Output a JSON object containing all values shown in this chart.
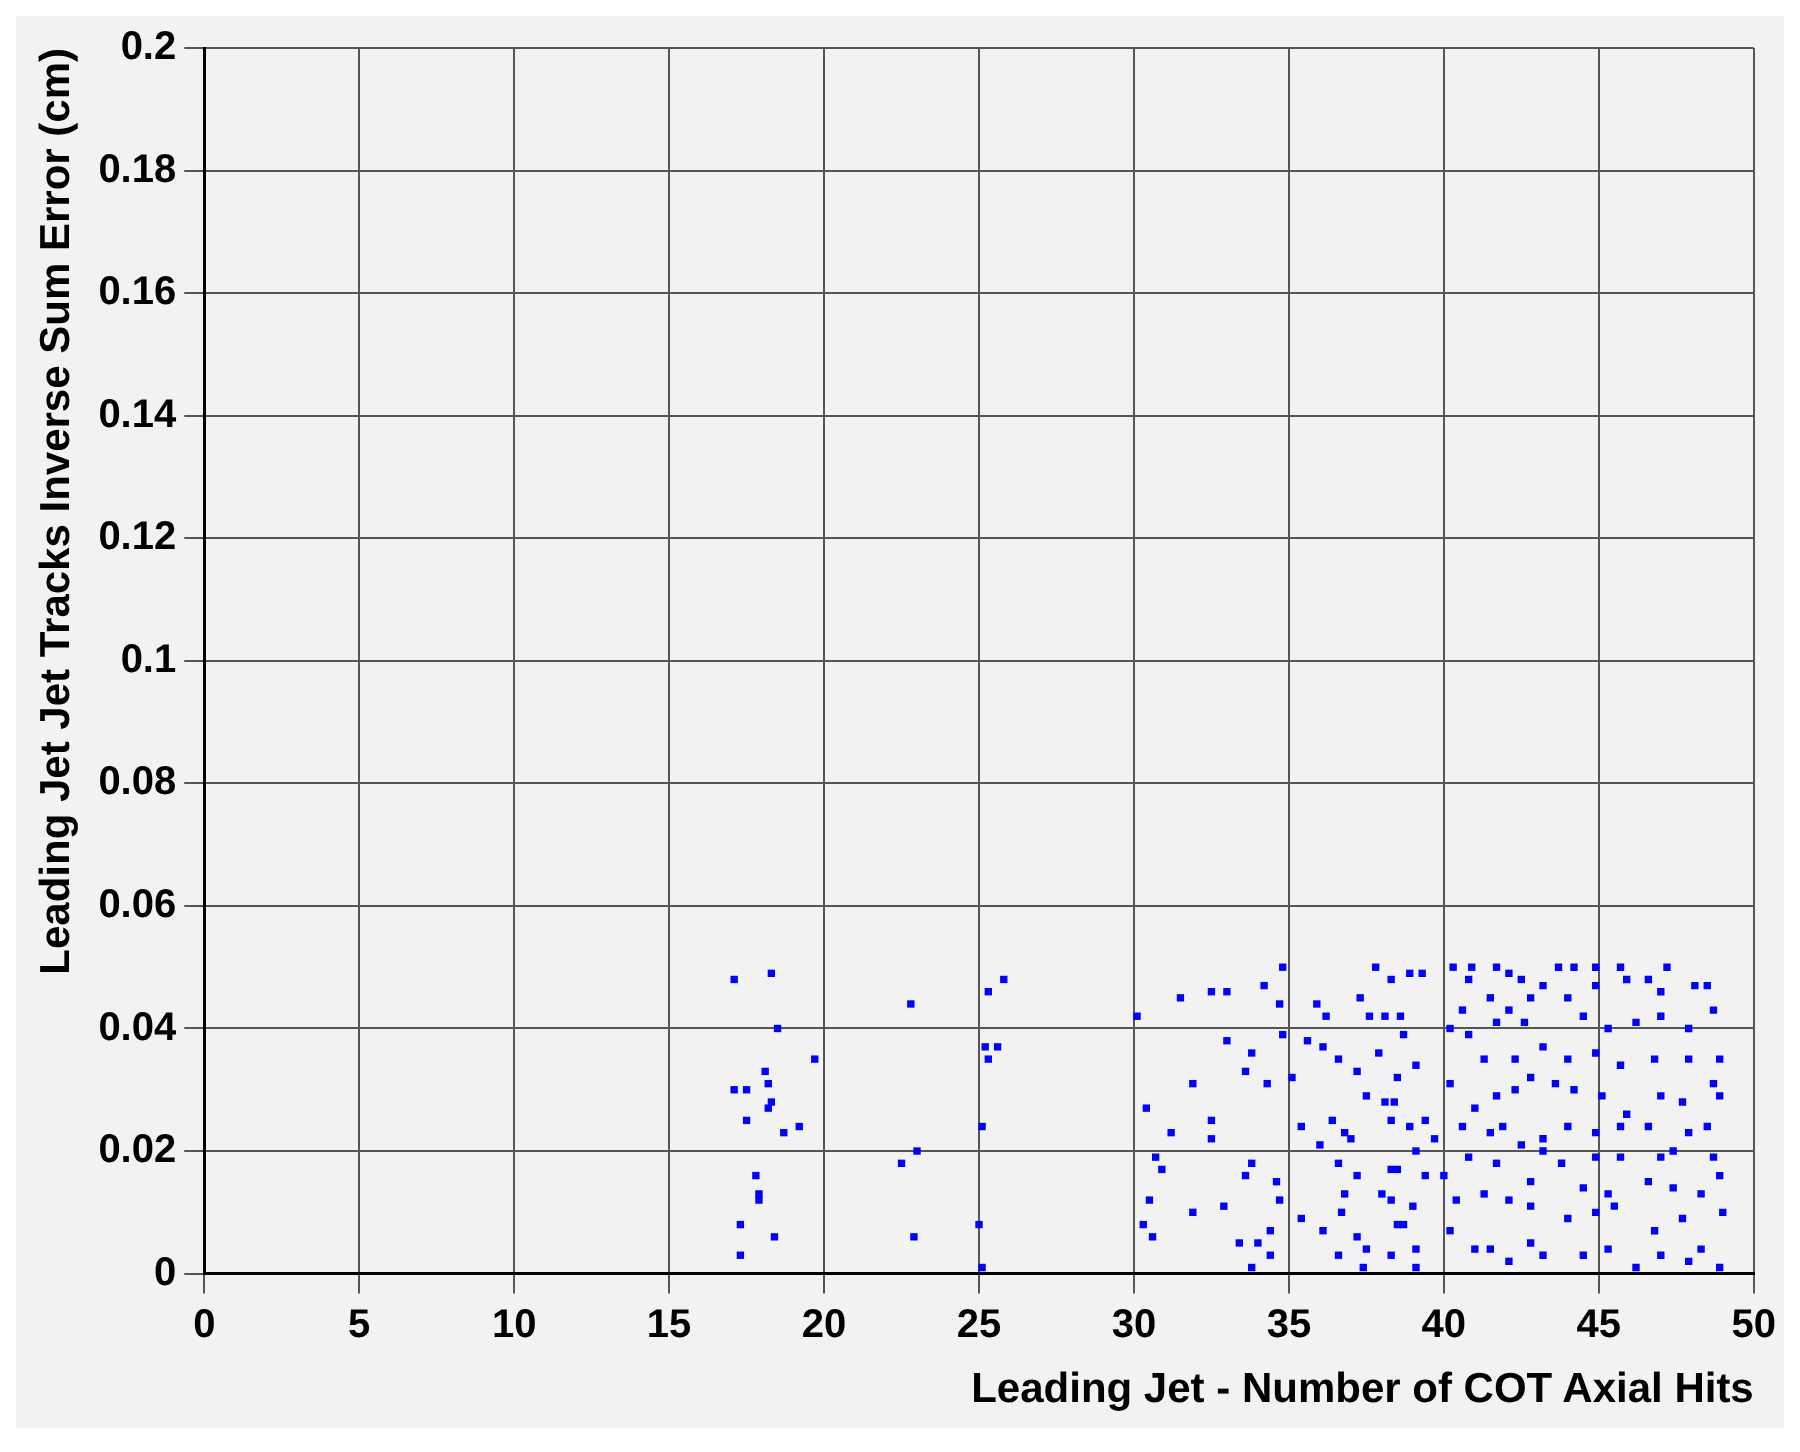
{
  "chart_data": {
    "type": "scatter",
    "xlabel": "Leading Jet - Number of COT Axial Hits",
    "ylabel": "Leading Jet Jet Tracks Inverse Sum Error (cm)",
    "xlim": [
      0,
      50
    ],
    "xticks": [
      0,
      5,
      10,
      15,
      20,
      25,
      30,
      35,
      40,
      45,
      50
    ],
    "ylim": [
      0,
      0.2
    ],
    "yticks": [
      0,
      0.02,
      0.04,
      0.06,
      0.08,
      0.1,
      0.12,
      0.14,
      0.16,
      0.18,
      0.2
    ],
    "grid": true,
    "marker": "square",
    "series": [
      {
        "color": "#0000ff",
        "x": [
          17.1,
          18.3,
          18.5,
          19.7,
          18.1,
          18.2,
          17.1,
          17.5,
          18.3,
          18.2,
          17.5,
          19.2,
          18.7,
          17.8,
          17.9,
          17.9,
          17.3,
          18.4,
          17.3,
          22.8,
          22.5,
          23.0,
          22.9,
          25.8,
          25.3,
          25.2,
          25.6,
          25.3,
          25.1,
          25.0,
          25.1,
          30.1,
          31.5,
          32.5,
          33.0,
          33.0,
          31.9,
          30.4,
          31.2,
          32.5,
          32.5,
          30.7,
          30.9,
          30.5,
          30.3,
          30.6,
          31.9,
          32.9,
          34.2,
          34.8,
          34.7,
          34.8,
          33.8,
          33.6,
          34.3,
          33.8,
          33.6,
          34.6,
          34.7,
          34.4,
          33.4,
          34.0,
          33.8,
          34.4,
          35.4,
          35.1,
          35.6,
          35.4,
          35.9,
          36.2,
          36.1,
          36.6,
          37.2,
          36.4,
          36.8,
          37.0,
          36.0,
          36.6,
          37.2,
          36.8,
          36.1,
          36.7,
          37.2,
          37.5,
          36.6,
          37.4,
          37.8,
          38.3,
          38.9,
          39.3,
          37.3,
          37.6,
          38.1,
          38.6,
          38.7,
          39.1,
          37.9,
          38.5,
          37.5,
          38.1,
          38.4,
          38.3,
          38.9,
          39.4,
          39.7,
          39.1,
          39.4,
          38.3,
          38.5,
          38.0,
          38.3,
          39.0,
          38.5,
          38.7,
          38.3,
          39.1,
          39.1,
          40.3,
          40.9,
          41.7,
          42.1,
          42.5,
          40.8,
          40.6,
          41.5,
          42.1,
          42.8,
          43.2,
          40.2,
          40.8,
          41.7,
          42.6,
          41.3,
          42.3,
          43.2,
          40.2,
          41.0,
          41.7,
          42.3,
          42.8,
          43.6,
          40.6,
          41.5,
          41.9,
          42.5,
          43.2,
          40.0,
          40.8,
          41.7,
          42.8,
          43.2,
          40.4,
          41.3,
          42.1,
          42.8,
          40.2,
          41.0,
          41.5,
          42.1,
          42.8,
          43.2,
          43.7,
          44.2,
          44.9,
          45.7,
          46.6,
          47.2,
          44.0,
          44.9,
          45.9,
          47.0,
          48.1,
          48.5,
          44.5,
          45.3,
          46.2,
          47.0,
          47.9,
          48.7,
          44.0,
          44.9,
          45.7,
          46.8,
          47.9,
          48.9,
          44.2,
          45.1,
          45.9,
          47.0,
          47.7,
          48.7,
          48.9,
          44.0,
          44.9,
          45.7,
          46.6,
          47.9,
          48.5,
          43.8,
          44.9,
          45.7,
          47.0,
          47.4,
          48.7,
          44.5,
          45.3,
          46.6,
          47.4,
          48.3,
          48.9,
          44.0,
          44.9,
          45.5,
          46.8,
          47.7,
          49.0,
          44.5,
          45.3,
          46.2,
          47.0,
          47.9,
          48.9,
          48.3
        ],
        "values": [
          0.048,
          0.049,
          0.04,
          0.035,
          0.033,
          0.031,
          0.03,
          0.03,
          0.028,
          0.027,
          0.025,
          0.024,
          0.023,
          0.016,
          0.013,
          0.012,
          0.008,
          0.006,
          0.003,
          0.044,
          0.018,
          0.02,
          0.006,
          0.048,
          0.046,
          0.037,
          0.037,
          0.035,
          0.024,
          0.008,
          0.001,
          0.042,
          0.045,
          0.046,
          0.046,
          0.038,
          0.031,
          0.027,
          0.023,
          0.025,
          0.022,
          0.019,
          0.017,
          0.012,
          0.008,
          0.006,
          0.01,
          0.011,
          0.047,
          0.05,
          0.044,
          0.039,
          0.036,
          0.033,
          0.031,
          0.018,
          0.016,
          0.015,
          0.012,
          0.007,
          0.005,
          0.005,
          0.001,
          0.003,
          0.009,
          0.032,
          0.038,
          0.024,
          0.044,
          0.042,
          0.037,
          0.035,
          0.033,
          0.025,
          0.023,
          0.022,
          0.021,
          0.018,
          0.016,
          0.013,
          0.007,
          0.01,
          0.006,
          0.004,
          0.003,
          0.001,
          0.05,
          0.048,
          0.049,
          0.049,
          0.045,
          0.042,
          0.042,
          0.042,
          0.039,
          0.034,
          0.036,
          0.032,
          0.029,
          0.028,
          0.028,
          0.025,
          0.024,
          0.025,
          0.022,
          0.02,
          0.016,
          0.017,
          0.017,
          0.013,
          0.012,
          0.011,
          0.008,
          0.008,
          0.003,
          0.004,
          0.001,
          0.05,
          0.05,
          0.05,
          0.049,
          0.048,
          0.048,
          0.043,
          0.045,
          0.043,
          0.045,
          0.047,
          0.04,
          0.039,
          0.041,
          0.041,
          0.035,
          0.035,
          0.037,
          0.031,
          0.027,
          0.029,
          0.03,
          0.032,
          0.031,
          0.024,
          0.023,
          0.024,
          0.021,
          0.022,
          0.016,
          0.019,
          0.018,
          0.015,
          0.02,
          0.012,
          0.013,
          0.012,
          0.011,
          0.007,
          0.004,
          0.004,
          0.002,
          0.005,
          0.003,
          0.05,
          0.05,
          0.05,
          0.05,
          0.048,
          0.05,
          0.045,
          0.047,
          0.048,
          0.046,
          0.047,
          0.047,
          0.042,
          0.04,
          0.041,
          0.042,
          0.04,
          0.043,
          0.035,
          0.036,
          0.034,
          0.035,
          0.035,
          0.035,
          0.03,
          0.029,
          0.026,
          0.029,
          0.028,
          0.031,
          0.029,
          0.024,
          0.023,
          0.024,
          0.024,
          0.023,
          0.024,
          0.018,
          0.019,
          0.019,
          0.019,
          0.02,
          0.019,
          0.014,
          0.013,
          0.015,
          0.014,
          0.013,
          0.016,
          0.009,
          0.01,
          0.011,
          0.007,
          0.009,
          0.01,
          0.003,
          0.004,
          0.001,
          0.003,
          0.002,
          0.001,
          0.004
        ]
      }
    ]
  }
}
